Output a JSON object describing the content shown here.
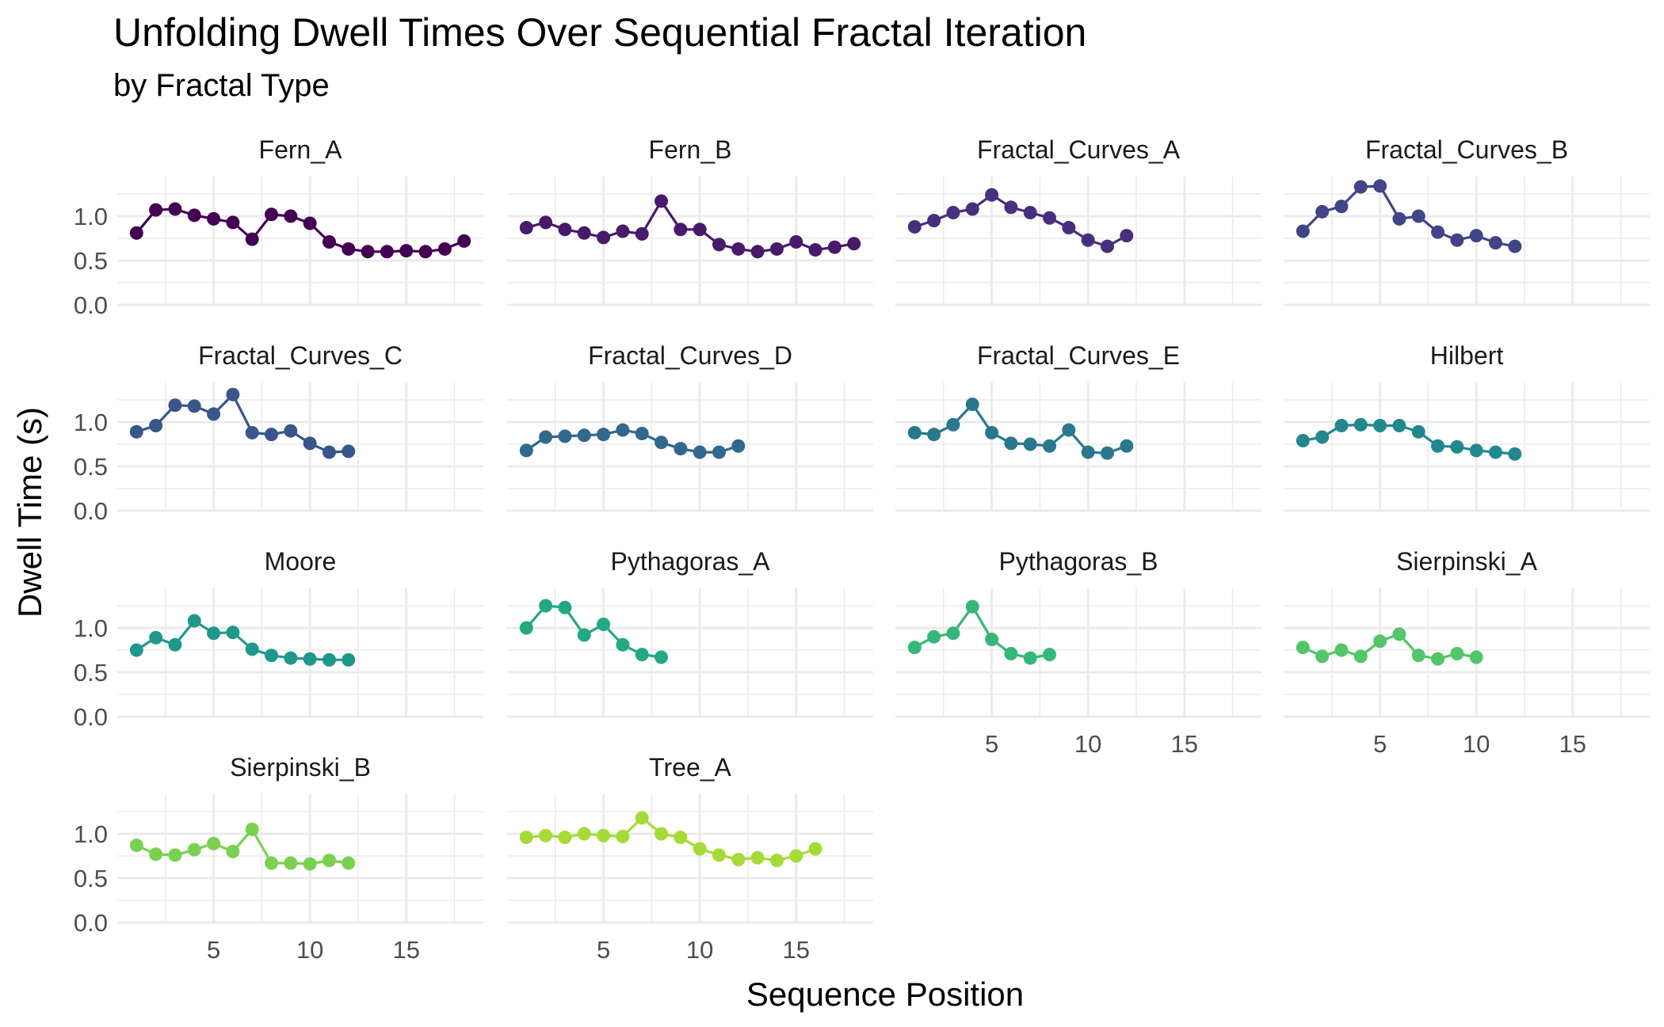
{
  "chart_data": {
    "type": "line",
    "title": "Unfolding Dwell Times Over Sequential Fractal Iteration",
    "subtitle": "by Fractal Type",
    "xlabel": "Sequence Position",
    "ylabel": "Dwell Time (s)",
    "xlim": [
      0,
      19
    ],
    "ylim": [
      0,
      1.45
    ],
    "x_ticks": [
      5,
      10,
      15
    ],
    "y_ticks": [
      0.0,
      0.5,
      1.0
    ],
    "y_tick_labels": [
      "0.0",
      "0.5",
      "1.0"
    ],
    "grid": true,
    "legend": "none",
    "facets": [
      {
        "name": "Fern_A",
        "color": "#440154",
        "values": [
          0.81,
          1.07,
          1.08,
          1.01,
          0.97,
          0.93,
          0.74,
          1.02,
          1.0,
          0.92,
          0.71,
          0.63,
          0.6,
          0.6,
          0.61,
          0.6,
          0.63,
          0.72
        ]
      },
      {
        "name": "Fern_B",
        "color": "#481A6C",
        "values": [
          0.87,
          0.93,
          0.85,
          0.81,
          0.76,
          0.83,
          0.8,
          1.17,
          0.85,
          0.85,
          0.68,
          0.63,
          0.6,
          0.63,
          0.71,
          0.62,
          0.65,
          0.69
        ]
      },
      {
        "name": "Fractal_Curves_A",
        "color": "#472F7D",
        "values": [
          0.88,
          0.95,
          1.04,
          1.08,
          1.24,
          1.1,
          1.04,
          0.98,
          0.87,
          0.73,
          0.66,
          0.78
        ]
      },
      {
        "name": "Fractal_Curves_B",
        "color": "#414487",
        "values": [
          0.83,
          1.05,
          1.11,
          1.33,
          1.34,
          0.97,
          1.0,
          0.82,
          0.73,
          0.78,
          0.7,
          0.66
        ]
      },
      {
        "name": "Fractal_Curves_C",
        "color": "#39568C",
        "values": [
          0.89,
          0.96,
          1.19,
          1.18,
          1.09,
          1.31,
          0.88,
          0.86,
          0.9,
          0.76,
          0.66,
          0.67
        ]
      },
      {
        "name": "Fractal_Curves_D",
        "color": "#31688E",
        "values": [
          0.68,
          0.83,
          0.84,
          0.85,
          0.86,
          0.91,
          0.87,
          0.77,
          0.7,
          0.66,
          0.66,
          0.73
        ]
      },
      {
        "name": "Fractal_Curves_E",
        "color": "#2A788E",
        "values": [
          0.88,
          0.86,
          0.97,
          1.2,
          0.88,
          0.76,
          0.75,
          0.73,
          0.91,
          0.66,
          0.65,
          0.73
        ]
      },
      {
        "name": "Hilbert",
        "color": "#23888E",
        "values": [
          0.79,
          0.83,
          0.96,
          0.97,
          0.96,
          0.96,
          0.89,
          0.73,
          0.72,
          0.68,
          0.66,
          0.64
        ]
      },
      {
        "name": "Moore",
        "color": "#1F988B",
        "values": [
          0.75,
          0.89,
          0.81,
          1.08,
          0.94,
          0.95,
          0.76,
          0.69,
          0.66,
          0.65,
          0.64,
          0.64
        ]
      },
      {
        "name": "Pythagoras_A",
        "color": "#22A884",
        "values": [
          1.0,
          1.25,
          1.23,
          0.92,
          1.04,
          0.81,
          0.7,
          0.67
        ]
      },
      {
        "name": "Pythagoras_B",
        "color": "#35B779",
        "values": [
          0.78,
          0.9,
          0.94,
          1.24,
          0.87,
          0.71,
          0.66,
          0.7
        ]
      },
      {
        "name": "Sierpinski_A",
        "color": "#54C568",
        "values": [
          0.78,
          0.68,
          0.75,
          0.68,
          0.85,
          0.93,
          0.69,
          0.65,
          0.71,
          0.67
        ]
      },
      {
        "name": "Sierpinski_B",
        "color": "#7AD151",
        "values": [
          0.87,
          0.77,
          0.76,
          0.82,
          0.89,
          0.8,
          1.05,
          0.67,
          0.67,
          0.66,
          0.7,
          0.67
        ]
      },
      {
        "name": "Tree_A",
        "color": "#A5DB36",
        "values": [
          0.96,
          0.98,
          0.96,
          1.0,
          0.98,
          0.97,
          1.18,
          1.0,
          0.96,
          0.83,
          0.76,
          0.71,
          0.73,
          0.7,
          0.75,
          0.83
        ]
      }
    ]
  }
}
